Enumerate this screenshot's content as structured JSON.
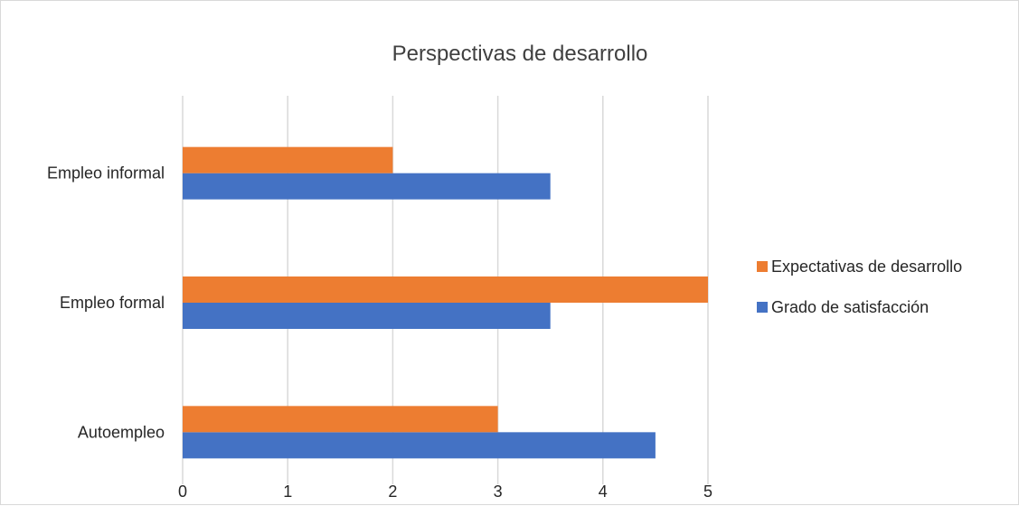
{
  "chart_data": {
    "type": "bar",
    "orientation": "horizontal",
    "title": "Perspectivas de desarrollo",
    "categories": [
      "Autoempleo",
      "Empleo formal",
      "Empleo informal"
    ],
    "series": [
      {
        "name": "Grado de satisfacción",
        "values": [
          4.5,
          3.5,
          3.5
        ],
        "color": "#4472c4"
      },
      {
        "name": "Expectativas de desarrollo",
        "values": [
          3,
          5,
          2
        ],
        "color": "#ed7d31"
      }
    ],
    "xticks": [
      "0",
      "1",
      "2",
      "3",
      "4",
      "5"
    ],
    "xlim": [
      0,
      5
    ],
    "grid": true,
    "legend_position": "right",
    "legend_order": [
      "Expectativas de desarrollo",
      "Grado de satisfacción"
    ]
  }
}
